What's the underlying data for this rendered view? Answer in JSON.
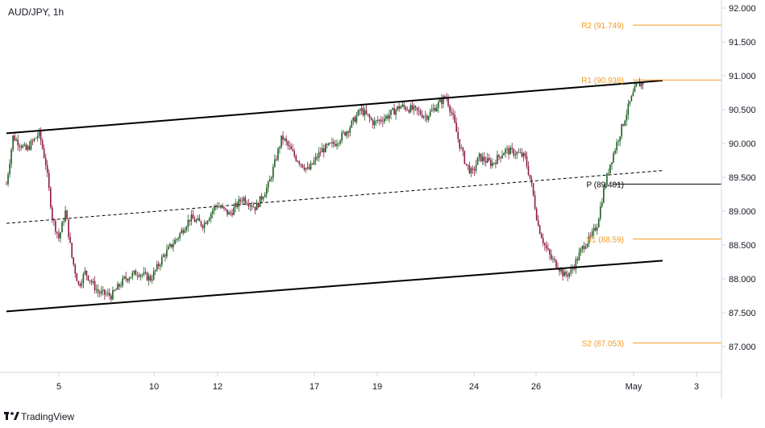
{
  "chart_data": {
    "type": "candlestick",
    "title": "AUD/JPY, 1h",
    "ylim": [
      86.5,
      92.1
    ],
    "y_ticks": [
      87.0,
      87.5,
      88.0,
      88.5,
      89.0,
      89.5,
      90.0,
      90.5,
      91.0,
      91.5,
      92.0
    ],
    "y_tick_labels": [
      "87.000",
      "87.500",
      "88.000",
      "88.500",
      "89.000",
      "89.500",
      "90.000",
      "90.500",
      "91.000",
      "91.500",
      "92.000"
    ],
    "x_tick_labels": [
      "5",
      "10",
      "12",
      "17",
      "19",
      "24",
      "26",
      "May",
      "3"
    ],
    "pivots": [
      {
        "name": "R2",
        "label": "R2 (91.749)",
        "value": 91.749,
        "color": "#f59a23"
      },
      {
        "name": "R1",
        "label": "R1 (90.938)",
        "value": 90.938,
        "color": "#f59a23"
      },
      {
        "name": "P",
        "label": "P (89.401)",
        "value": 89.401,
        "color": "#000000"
      },
      {
        "name": "S1",
        "label": "S1 (88.59)",
        "value": 88.59,
        "color": "#f59a23"
      },
      {
        "name": "S2",
        "label": "S2 (87.053)",
        "value": 87.053,
        "color": "#f59a23"
      }
    ],
    "channel": {
      "upper": [
        [
          0,
          90.15
        ],
        [
          100,
          90.93
        ]
      ],
      "lower": [
        [
          0,
          87.52
        ],
        [
          100,
          88.27
        ]
      ],
      "mid": [
        [
          0,
          88.82
        ],
        [
          100,
          89.6
        ]
      ]
    },
    "price_path": [
      [
        0,
        89.4
      ],
      [
        1,
        90.1
      ],
      [
        3,
        89.9
      ],
      [
        5,
        90.15
      ],
      [
        6,
        89.7
      ],
      [
        7,
        88.9
      ],
      [
        8,
        88.6
      ],
      [
        9,
        89.0
      ],
      [
        10,
        88.3
      ],
      [
        11,
        87.9
      ],
      [
        12,
        88.1
      ],
      [
        14,
        87.8
      ],
      [
        16,
        87.75
      ],
      [
        18,
        88.0
      ],
      [
        20,
        88.1
      ],
      [
        22,
        88.0
      ],
      [
        24,
        88.35
      ],
      [
        26,
        88.6
      ],
      [
        28,
        88.9
      ],
      [
        30,
        88.8
      ],
      [
        32,
        89.1
      ],
      [
        34,
        88.95
      ],
      [
        36,
        89.2
      ],
      [
        38,
        89.05
      ],
      [
        40,
        89.4
      ],
      [
        42,
        90.1
      ],
      [
        44,
        89.8
      ],
      [
        46,
        89.6
      ],
      [
        48,
        89.9
      ],
      [
        50,
        90.0
      ],
      [
        52,
        90.2
      ],
      [
        54,
        90.5
      ],
      [
        56,
        90.3
      ],
      [
        58,
        90.4
      ],
      [
        60,
        90.55
      ],
      [
        62,
        90.5
      ],
      [
        64,
        90.4
      ],
      [
        66,
        90.6
      ],
      [
        67,
        90.7
      ],
      [
        68,
        90.4
      ],
      [
        69,
        90.0
      ],
      [
        70,
        89.7
      ],
      [
        71,
        89.55
      ],
      [
        72,
        89.8
      ],
      [
        74,
        89.7
      ],
      [
        76,
        89.9
      ],
      [
        78,
        89.85
      ],
      [
        79,
        89.8
      ],
      [
        80,
        89.4
      ],
      [
        81,
        88.8
      ],
      [
        82,
        88.5
      ],
      [
        83,
        88.3
      ],
      [
        84,
        88.2
      ],
      [
        85,
        88.05
      ],
      [
        86,
        88.1
      ],
      [
        87,
        88.3
      ],
      [
        88,
        88.5
      ],
      [
        89,
        88.6
      ],
      [
        90,
        88.8
      ],
      [
        91,
        89.3
      ],
      [
        92,
        89.7
      ],
      [
        93,
        90.0
      ],
      [
        94,
        90.3
      ],
      [
        95,
        90.6
      ],
      [
        96,
        90.85
      ],
      [
        97,
        90.9
      ]
    ],
    "grid": false
  },
  "brand": {
    "label": "TradingView"
  },
  "colors": {
    "up": "#1b5e20",
    "down": "#8b1a45",
    "pivot": "#f59a23"
  }
}
